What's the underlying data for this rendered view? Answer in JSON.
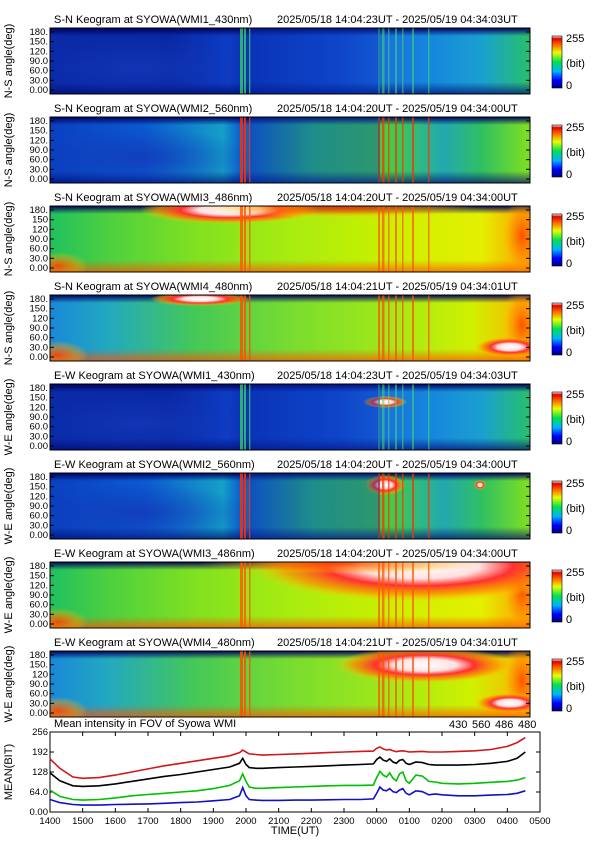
{
  "panels": [
    {
      "title": "S-N Keogram at SYOWA(WMI1_430nm)",
      "range": "2025/05/18 14:04:23UT - 2025/05/19 04:34:03UT",
      "ylabel": "N-S angle(deg)",
      "ticks": [
        "180.",
        "150.",
        "120.",
        "90.0",
        "60.0",
        "30.0",
        "0.00"
      ],
      "profile": "dim"
    },
    {
      "title": "S-N Keogram at SYOWA(WMI2_560nm)",
      "range": "2025/05/18 14:04:20UT - 2025/05/19 04:34:00UT",
      "ylabel": "N-S angle(deg)",
      "ticks": [
        "180.",
        "150.",
        "120.",
        "90.0",
        "60.0",
        "30.0",
        "0.00"
      ],
      "profile": "green"
    },
    {
      "title": "S-N Keogram at SYOWA(WMI3_486nm)",
      "range": "2025/05/18 14:04:20UT - 2025/05/19 04:34:00UT",
      "ylabel": "N-S angle(deg)",
      "ticks": [
        "180.",
        "150",
        "120",
        "90.0",
        "60.0",
        "30.0",
        "0.00"
      ],
      "profile": "bright"
    },
    {
      "title": "S-N Keogram at SYOWA(WMI4_480nm)",
      "range": "2025/05/18 14:04:21UT - 2025/05/19 04:34:01UT",
      "ylabel": "N-S angle(deg)",
      "ticks": [
        "180.",
        "150.",
        "120",
        "90.0",
        "60.0",
        "30.0",
        "0.00"
      ],
      "profile": "medium"
    },
    {
      "title": "E-W Keogram at SYOWA(WMI1_430nm)",
      "range": "2025/05/18 14:04:23UT - 2025/05/19 04:34:03UT",
      "ylabel": "W-E angle(deg)",
      "ticks": [
        "180.",
        "150.",
        "120.",
        "90.0",
        "60.0",
        "30.0",
        "0.00"
      ],
      "profile": "dim"
    },
    {
      "title": "E-W Keogram at SYOWA(WMI2_560nm)",
      "range": "2025/05/18 14:04:20UT - 2025/05/19 04:34:00UT",
      "ylabel": "W-E angle(deg)",
      "ticks": [
        "180.",
        "150.",
        "120.",
        "90.0",
        "60.0",
        "30.0",
        "0.00"
      ],
      "profile": "green"
    },
    {
      "title": "E-W Keogram at SYOWA(WMI3_486nm)",
      "range": "2025/05/18 14:04:20UT - 2025/05/19 04:34:00UT",
      "ylabel": "W-E angle(deg)",
      "ticks": [
        "180.",
        "150.",
        "120.",
        "90.0",
        "60.0",
        "30.0",
        "0.00"
      ],
      "profile": "bright"
    },
    {
      "title": "E-W Keogram at SYOWA(WMI4_480nm)",
      "range": "2025/05/18 14:04:21UT - 2025/05/19 04:34:01UT",
      "ylabel": "W-E angle(deg)",
      "ticks": [
        "180.",
        "150.",
        "120",
        "90.0",
        "60.0",
        "30.0",
        "0.00"
      ],
      "profile": "medium"
    }
  ],
  "colorbar": {
    "max_label": "255",
    "unit_label": "(bit)",
    "min_label": "0"
  },
  "chart_data": {
    "type": "line",
    "title": "Mean intensity in FOV of Syowa WMI",
    "xlabel": "TIME(UT)",
    "ylabel": "MEAN(BIT)",
    "ylim": [
      0,
      256
    ],
    "yticks": [
      "256",
      "192",
      "128",
      "64.0",
      "0.00"
    ],
    "xticks": [
      "1400",
      "1500",
      "1600",
      "1700",
      "1800",
      "1900",
      "2000",
      "2100",
      "2200",
      "2300",
      "0000",
      "0100",
      "0200",
      "0300",
      "0400",
      "0500"
    ],
    "x_hours_ut": [
      14.0,
      14.3,
      14.7,
      15.0,
      15.5,
      16.0,
      16.5,
      17.0,
      17.5,
      18.0,
      18.5,
      19.0,
      19.5,
      19.8,
      19.9,
      20.0,
      20.1,
      20.3,
      20.5,
      21.0,
      21.5,
      22.0,
      22.5,
      23.0,
      23.5,
      23.9,
      24.0,
      24.1,
      24.2,
      24.3,
      24.4,
      24.5,
      24.6,
      24.7,
      24.8,
      24.9,
      25.0,
      25.2,
      25.4,
      25.6,
      25.8,
      26.0,
      26.5,
      27.0,
      27.5,
      28.0,
      28.3,
      28.55
    ],
    "series": [
      {
        "name": "430",
        "color": "#1010c8",
        "values": [
          40,
          30,
          24,
          22,
          22,
          24,
          25,
          26,
          28,
          30,
          32,
          36,
          40,
          52,
          78,
          52,
          40,
          38,
          37,
          37,
          38,
          38,
          39,
          40,
          40,
          42,
          60,
          80,
          70,
          68,
          75,
          65,
          62,
          70,
          75,
          60,
          55,
          68,
          65,
          55,
          58,
          55,
          52,
          52,
          54,
          56,
          60,
          68
        ]
      },
      {
        "name": "560",
        "color": "#00c000",
        "values": [
          70,
          50,
          40,
          38,
          40,
          45,
          52,
          56,
          60,
          64,
          68,
          75,
          85,
          100,
          122,
          98,
          80,
          76,
          76,
          78,
          80,
          82,
          84,
          85,
          85,
          86,
          110,
          130,
          118,
          112,
          125,
          108,
          100,
          122,
          128,
          100,
          92,
          118,
          115,
          98,
          96,
          92,
          90,
          92,
          95,
          98,
          102,
          110
        ]
      },
      {
        "name": "486",
        "color": "#d01818",
        "values": [
          170,
          140,
          112,
          108,
          110,
          118,
          128,
          138,
          148,
          156,
          164,
          172,
          180,
          190,
          198,
          192,
          186,
          184,
          182,
          184,
          186,
          188,
          190,
          192,
          194,
          195,
          204,
          208,
          202,
          198,
          200,
          196,
          193,
          195,
          196,
          194,
          192,
          193,
          194,
          192,
          192,
          192,
          194,
          196,
          200,
          210,
          222,
          238
        ]
      },
      {
        "name": "480",
        "color": "#000000",
        "values": [
          125,
          100,
          84,
          82,
          84,
          90,
          98,
          106,
          114,
          120,
          128,
          136,
          144,
          156,
          172,
          152,
          142,
          140,
          140,
          142,
          144,
          146,
          148,
          150,
          152,
          154,
          168,
          176,
          166,
          162,
          170,
          160,
          156,
          165,
          168,
          156,
          152,
          160,
          158,
          152,
          150,
          150,
          150,
          152,
          156,
          162,
          172,
          192
        ]
      }
    ]
  }
}
